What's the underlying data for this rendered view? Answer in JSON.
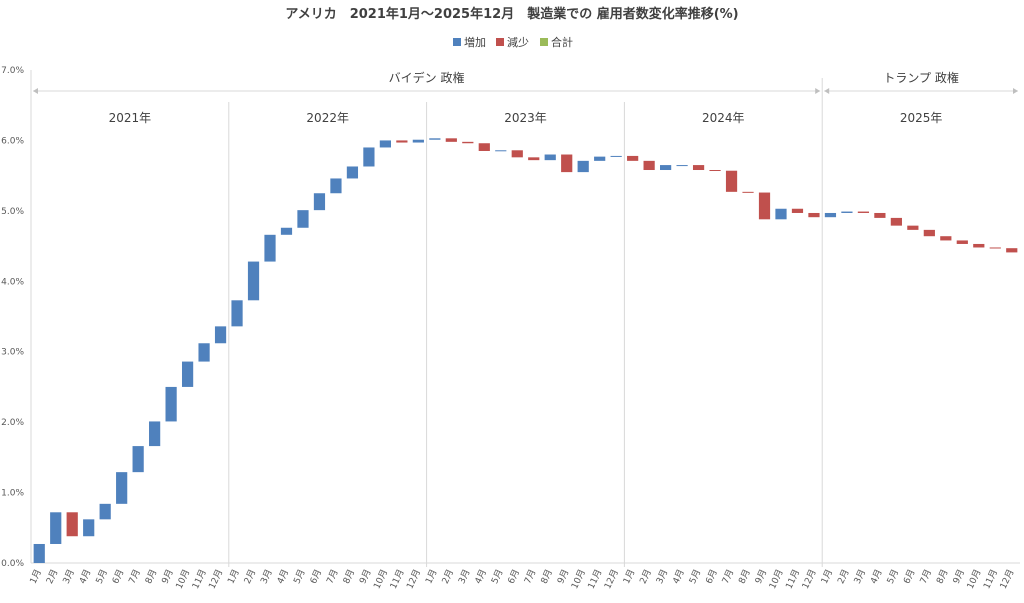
{
  "chart_data": {
    "type": "bar",
    "subtype": "waterfall",
    "title": "アメリカ　2021年1月～2025年12月　製造業での 雇用者数変化率推移(%)",
    "legend": {
      "placement": "top-center",
      "items": [
        {
          "name": "増加",
          "color": "#4F81BD"
        },
        {
          "name": "減少",
          "color": "#C0504D"
        },
        {
          "name": "合計",
          "color": "#9BBB59"
        }
      ]
    },
    "ylim": [
      0,
      7
    ],
    "yticks": [
      "0.0%",
      "1.0%",
      "2.0%",
      "3.0%",
      "4.0%",
      "5.0%",
      "6.0%",
      "7.0%"
    ],
    "grid": false,
    "years": [
      "2021年",
      "2022年",
      "2023年",
      "2024年",
      "2025年"
    ],
    "eras": [
      {
        "label": "バイデン 政権",
        "start_index": 0,
        "end_index": 48
      },
      {
        "label": "トランプ 政権",
        "start_index": 48,
        "end_index": 60
      }
    ],
    "categories": [
      "1月",
      "2月",
      "3月",
      "4月",
      "5月",
      "6月",
      "7月",
      "8月",
      "9月",
      "10月",
      "11月",
      "12月",
      "1月",
      "2月",
      "3月",
      "4月",
      "5月",
      "6月",
      "7月",
      "8月",
      "9月",
      "10月",
      "11月",
      "12月",
      "1月",
      "2月",
      "3月",
      "4月",
      "5月",
      "6月",
      "7月",
      "8月",
      "9月",
      "10月",
      "11月",
      "12月",
      "1月",
      "2月",
      "3月",
      "4月",
      "5月",
      "6月",
      "7月",
      "8月",
      "9月",
      "10月",
      "11月",
      "12月",
      "1月",
      "2月",
      "3月",
      "4月",
      "5月",
      "6月",
      "7月",
      "8月",
      "9月",
      "10月",
      "11月",
      "12月"
    ],
    "levels": [
      0.0,
      0.27,
      0.72,
      0.38,
      0.62,
      0.84,
      1.29,
      1.66,
      2.01,
      2.5,
      2.86,
      3.12,
      3.36,
      3.73,
      4.28,
      4.66,
      4.76,
      5.01,
      5.25,
      5.46,
      5.63,
      5.9,
      6.0,
      5.97,
      6.01,
      6.03,
      5.98,
      5.96,
      5.85,
      5.86,
      5.76,
      5.72,
      5.8,
      5.55,
      5.71,
      5.77,
      5.78,
      5.71,
      5.58,
      5.65,
      5.65,
      5.58,
      5.57,
      5.27,
      5.26,
      4.88,
      5.03,
      4.97,
      4.91,
      4.97,
      4.99,
      4.97,
      4.9,
      4.79,
      4.73,
      4.64,
      4.58,
      4.53,
      4.48,
      4.47,
      4.41
    ]
  }
}
